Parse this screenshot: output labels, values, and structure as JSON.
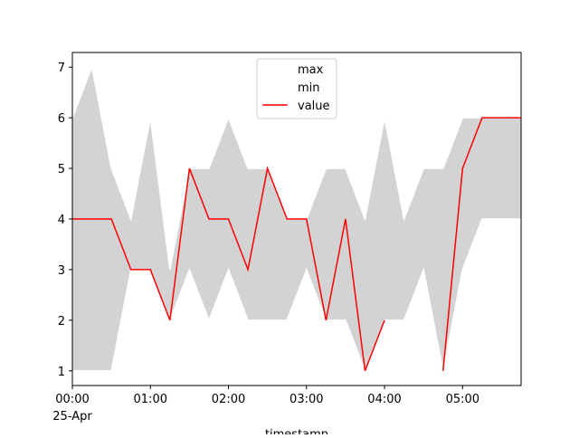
{
  "chart_data": {
    "type": "line",
    "x": [
      "00:00",
      "00:15",
      "00:30",
      "00:45",
      "01:00",
      "01:15",
      "01:30",
      "01:45",
      "02:00",
      "02:15",
      "02:30",
      "02:45",
      "03:00",
      "03:15",
      "03:30",
      "03:45",
      "04:00",
      "04:15",
      "04:30",
      "04:45",
      "05:00",
      "05:15",
      "05:30",
      "05:45"
    ],
    "series": [
      {
        "name": "max",
        "color": "#ffffff",
        "values": [
          6,
          7,
          5,
          4,
          6,
          3,
          5,
          5,
          6,
          5,
          5,
          4,
          4,
          5,
          5,
          4,
          6,
          4,
          5,
          5,
          6,
          6,
          6,
          6
        ]
      },
      {
        "name": "min",
        "color": "#ffffff",
        "values": [
          1,
          1,
          1,
          3,
          3,
          2,
          3,
          2,
          3,
          2,
          2,
          2,
          3,
          2,
          2,
          1,
          2,
          2,
          3,
          1,
          3,
          4,
          4,
          4
        ]
      },
      {
        "name": "value",
        "color": "#ff0000",
        "values": [
          4,
          4,
          4,
          3,
          3,
          2,
          5,
          4,
          4,
          3,
          5,
          4,
          4,
          2,
          4,
          1,
          2,
          null,
          null,
          1,
          5,
          6,
          6,
          6
        ]
      }
    ],
    "fill_between_color": "#d3d3d3",
    "xlabel": "timestamp",
    "x_date_label": "25-Apr",
    "xlim": [
      "00:00",
      "05:45"
    ],
    "xticks": [
      "00:00",
      "01:00",
      "02:00",
      "03:00",
      "04:00",
      "05:00"
    ],
    "ylim": [
      0.71,
      7.29
    ],
    "yticks": [
      1,
      2,
      3,
      4,
      5,
      6,
      7
    ],
    "legend": "upper center"
  }
}
